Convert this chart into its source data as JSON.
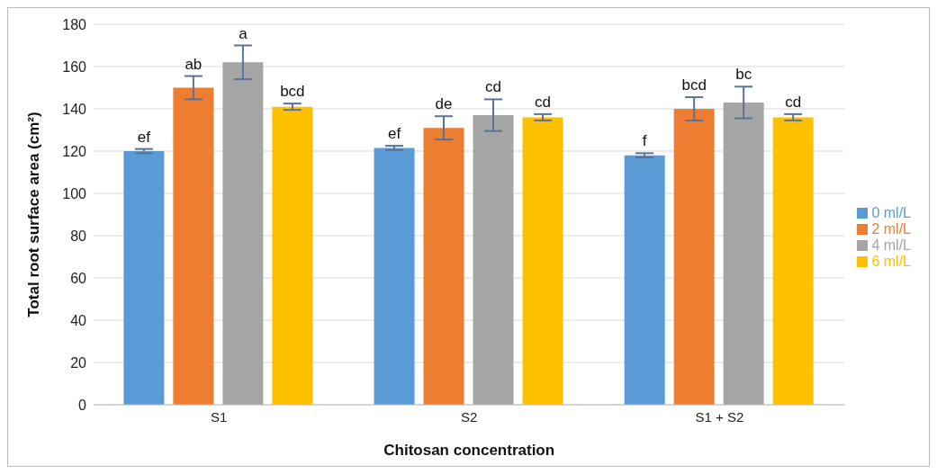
{
  "chart_data": {
    "type": "bar",
    "xlabel": "Chitosan concentration",
    "ylabel": "Total root surface area (cm²)",
    "categories": [
      "S1",
      "S2",
      "S1 + S2"
    ],
    "series": [
      {
        "name": "0 ml/L",
        "color": "#5b9bd5",
        "values": [
          120,
          121.5,
          118
        ],
        "errors": [
          1,
          1,
          1
        ],
        "value_labels": [
          "ef",
          "ef",
          "f"
        ]
      },
      {
        "name": "2 ml/L",
        "color": "#ed7d31",
        "values": [
          150,
          131,
          140
        ],
        "errors": [
          5.5,
          5.5,
          5.5
        ],
        "value_labels": [
          "ab",
          "de",
          "bcd"
        ]
      },
      {
        "name": "4 ml/L",
        "color": "#a5a5a5",
        "values": [
          162,
          137,
          143
        ],
        "errors": [
          8,
          7.5,
          7.5
        ],
        "value_labels": [
          "a",
          "cd",
          "bc"
        ]
      },
      {
        "name": "6 ml/L",
        "color": "#ffc000",
        "values": [
          141,
          136,
          136
        ],
        "errors": [
          1.5,
          1.5,
          1.5
        ],
        "value_labels": [
          "bcd",
          "cd",
          "cd"
        ]
      }
    ],
    "ylim": [
      0,
      180
    ],
    "yticks": [
      0,
      20,
      40,
      60,
      80,
      100,
      120,
      140,
      160,
      180
    ],
    "grid": "y",
    "legend": "right"
  }
}
